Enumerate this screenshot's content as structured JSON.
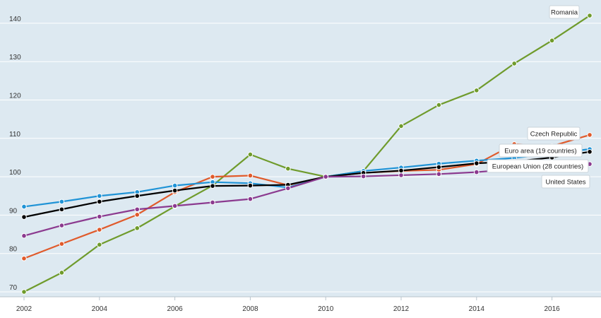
{
  "chart_data": {
    "type": "line",
    "title": "",
    "xlabel": "",
    "ylabel": "",
    "x": [
      2002,
      2003,
      2004,
      2005,
      2006,
      2007,
      2008,
      2009,
      2010,
      2011,
      2012,
      2013,
      2014,
      2015,
      2016,
      2017
    ],
    "xticks": [
      "2002",
      "2004",
      "2006",
      "2008",
      "2010",
      "2012",
      "2014",
      "2016"
    ],
    "yticks": [
      "70",
      "80",
      "90",
      "100",
      "110",
      "120",
      "130",
      "140"
    ],
    "xlim": [
      2002,
      2017.2
    ],
    "ylim": [
      69,
      145
    ],
    "grid": "horizontal",
    "background": "#dde9f1",
    "series": [
      {
        "name": "Romania",
        "color": "#6f9b2c",
        "values": [
          70.0,
          75.0,
          82.3,
          86.6,
          92.3,
          97.7,
          105.8,
          102.1,
          100.0,
          101.5,
          113.2,
          118.7,
          122.5,
          129.5,
          135.5,
          142.0
        ]
      },
      {
        "name": "Czech Republic",
        "color": "#e05a2b",
        "values": [
          78.7,
          82.5,
          86.2,
          90.1,
          96.0,
          100.0,
          100.3,
          97.8,
          100.0,
          101.0,
          101.5,
          101.8,
          103.3,
          108.5,
          108.0,
          110.9
        ]
      },
      {
        "name": "Euro area (19 countries)",
        "color": "#1f93d6",
        "values": [
          92.2,
          93.5,
          95.0,
          96.0,
          97.7,
          98.6,
          98.3,
          97.2,
          100.0,
          101.5,
          102.4,
          103.4,
          104.2,
          104.9,
          106.0,
          107.2
        ]
      },
      {
        "name": "European Union (28 countries)",
        "color": "#000000",
        "values": [
          89.5,
          91.5,
          93.5,
          95.0,
          96.4,
          97.6,
          97.7,
          97.9,
          100.0,
          101.0,
          101.6,
          102.5,
          103.5,
          104.0,
          105.0,
          106.5
        ]
      },
      {
        "name": "United States",
        "color": "#8b3a8f",
        "values": [
          84.6,
          87.3,
          89.6,
          91.5,
          92.4,
          93.3,
          94.2,
          97.0,
          100.0,
          100.1,
          100.4,
          100.7,
          101.2,
          102.0,
          102.6,
          103.3
        ]
      }
    ]
  }
}
